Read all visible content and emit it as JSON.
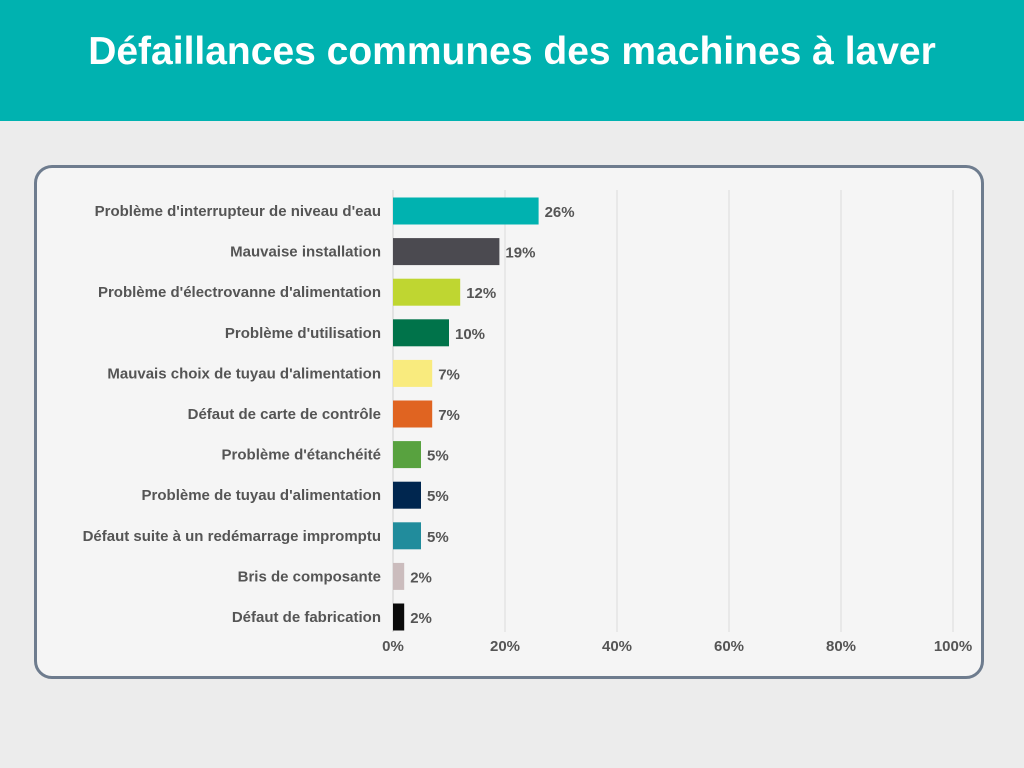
{
  "header": {
    "title": "Défaillances communes des machines à laver",
    "bg_color": "#00b2b0"
  },
  "chart_data": {
    "type": "bar",
    "orientation": "horizontal",
    "categories": [
      "Problème d'interrupteur de niveau d'eau",
      "Mauvaise installation",
      "Problème d'électrovanne d'alimentation",
      "Problème d'utilisation",
      "Mauvais choix de tuyau d'alimentation",
      "Défaut de carte de contrôle",
      "Problème d'étanchéité",
      "Problème de tuyau d'alimentation",
      "Défaut suite à un redémarrage impromptu",
      "Bris de composante",
      "Défaut de fabrication"
    ],
    "values": [
      26,
      19,
      12,
      10,
      7,
      7,
      5,
      5,
      5,
      2,
      2
    ],
    "value_labels": [
      "26%",
      "19%",
      "12%",
      "10%",
      "7%",
      "7%",
      "5%",
      "5%",
      "5%",
      "2%",
      "2%"
    ],
    "colors": [
      "#00b2b0",
      "#4b4a50",
      "#bfd631",
      "#00734a",
      "#f9eb7e",
      "#e06421",
      "#58a23f",
      "#00264f",
      "#218c9c",
      "#cbbcbd",
      "#0a0a0a"
    ],
    "xlim": [
      0,
      100
    ],
    "x_ticks": [
      0,
      20,
      40,
      60,
      80,
      100
    ],
    "x_tick_labels": [
      "0%",
      "20%",
      "40%",
      "60%",
      "80%",
      "100%"
    ],
    "grid": true,
    "legend": "none"
  }
}
